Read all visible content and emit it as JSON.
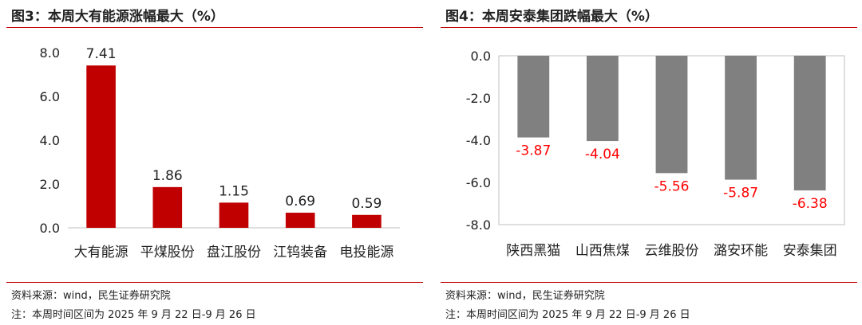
{
  "chart_data": [
    {
      "type": "bar",
      "title": "图3：本周大有能源涨幅最大（%）",
      "categories": [
        "大有能源",
        "平煤股份",
        "盘江股份",
        "江钨装备",
        "电投能源"
      ],
      "values": [
        7.41,
        1.86,
        1.15,
        0.69,
        0.59
      ],
      "data_labels": [
        "7.41",
        "1.86",
        "1.15",
        "0.69",
        "0.59"
      ],
      "ylim": [
        0,
        8
      ],
      "yticks": [
        0,
        2,
        4,
        6,
        8
      ],
      "ytick_labels": [
        "0.0",
        "2.0",
        "4.0",
        "6.0",
        "8.0"
      ],
      "bar_color": "#c00000",
      "label_color": "#222222",
      "frame": false,
      "grid": false,
      "source": "资料来源：wind，民生证券研究院",
      "note": "注：本周时间区间为 2025 年 9 月 22 日-9 月 26 日"
    },
    {
      "type": "bar",
      "title": "图4：本周安泰集团跌幅最大（%）",
      "categories": [
        "陕西黑猫",
        "山西焦煤",
        "云维股份",
        "潞安环能",
        "安泰集团"
      ],
      "values": [
        -3.87,
        -4.04,
        -5.56,
        -5.87,
        -6.38
      ],
      "data_labels": [
        "-3.87",
        "-4.04",
        "-5.56",
        "-5.87",
        "-6.38"
      ],
      "ylim": [
        -8,
        0
      ],
      "yticks": [
        0,
        -2,
        -4,
        -6,
        -8
      ],
      "ytick_labels": [
        "0.0",
        "-2.0",
        "-4.0",
        "-6.0",
        "-8.0"
      ],
      "bar_color": "#808080",
      "label_color": "#ff0000",
      "frame": true,
      "grid": false,
      "source": "资料来源：wind，民生证券研究院",
      "note": "注：本周时间区间为 2025 年 9 月 22 日-9 月 26 日"
    }
  ]
}
